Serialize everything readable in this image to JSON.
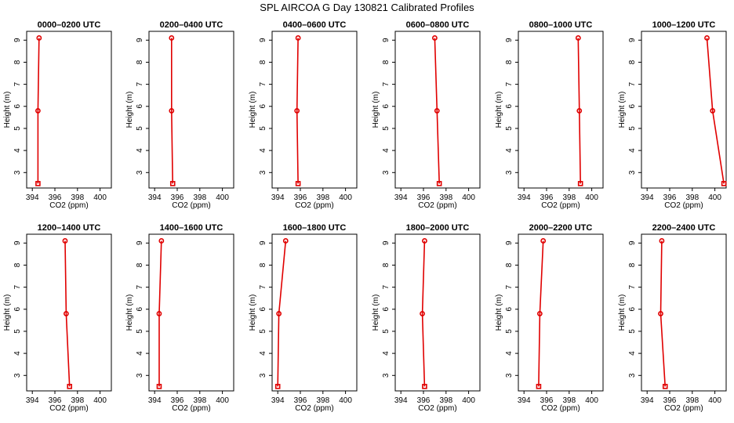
{
  "figure_title": "SPL AIRCOA G  Day 130821  Calibrated Profiles",
  "colors": {
    "series": "#e00000",
    "axes": "#000000",
    "background": "#ffffff"
  },
  "chart_data": [
    {
      "type": "line",
      "title": "0000–0200 UTC",
      "xlabel": "CO2 (ppm)",
      "ylabel": "Height (m)",
      "xlim": [
        393.5,
        401
      ],
      "ylim": [
        2.3,
        9.4
      ],
      "x_ticks": [
        394,
        396,
        398,
        400
      ],
      "y_ticks": [
        3,
        4,
        5,
        6,
        7,
        8,
        9
      ],
      "grid": false,
      "points": [
        {
          "x": 394.6,
          "y": 9.1
        },
        {
          "x": 394.5,
          "y": 5.8
        },
        {
          "x": 394.5,
          "y": 2.5
        }
      ]
    },
    {
      "type": "line",
      "title": "0200–0400 UTC",
      "xlabel": "CO2 (ppm)",
      "ylabel": "Height (m)",
      "xlim": [
        393.5,
        401
      ],
      "ylim": [
        2.3,
        9.4
      ],
      "x_ticks": [
        394,
        396,
        398,
        400
      ],
      "y_ticks": [
        3,
        4,
        5,
        6,
        7,
        8,
        9
      ],
      "grid": false,
      "points": [
        {
          "x": 395.5,
          "y": 9.1
        },
        {
          "x": 395.5,
          "y": 5.8
        },
        {
          "x": 395.6,
          "y": 2.5
        }
      ]
    },
    {
      "type": "line",
      "title": "0400–0600 UTC",
      "xlabel": "CO2 (ppm)",
      "ylabel": "Height (m)",
      "xlim": [
        393.5,
        401
      ],
      "ylim": [
        2.3,
        9.4
      ],
      "x_ticks": [
        394,
        396,
        398,
        400
      ],
      "y_ticks": [
        3,
        4,
        5,
        6,
        7,
        8,
        9
      ],
      "grid": false,
      "points": [
        {
          "x": 395.8,
          "y": 9.1
        },
        {
          "x": 395.7,
          "y": 5.8
        },
        {
          "x": 395.8,
          "y": 2.5
        }
      ]
    },
    {
      "type": "line",
      "title": "0600–0800 UTC",
      "xlabel": "CO2 (ppm)",
      "ylabel": "Height (m)",
      "xlim": [
        393.5,
        401
      ],
      "ylim": [
        2.3,
        9.4
      ],
      "x_ticks": [
        394,
        396,
        398,
        400
      ],
      "y_ticks": [
        3,
        4,
        5,
        6,
        7,
        8,
        9
      ],
      "grid": false,
      "points": [
        {
          "x": 397.0,
          "y": 9.1
        },
        {
          "x": 397.2,
          "y": 5.8
        },
        {
          "x": 397.4,
          "y": 2.5
        }
      ]
    },
    {
      "type": "line",
      "title": "0800–1000 UTC",
      "xlabel": "CO2 (ppm)",
      "ylabel": "Height (m)",
      "xlim": [
        393.5,
        401
      ],
      "ylim": [
        2.3,
        9.4
      ],
      "x_ticks": [
        394,
        396,
        398,
        400
      ],
      "y_ticks": [
        3,
        4,
        5,
        6,
        7,
        8,
        9
      ],
      "grid": false,
      "points": [
        {
          "x": 398.8,
          "y": 9.1
        },
        {
          "x": 398.9,
          "y": 5.8
        },
        {
          "x": 399.0,
          "y": 2.5
        }
      ]
    },
    {
      "type": "line",
      "title": "1000–1200 UTC",
      "xlabel": "CO2 (ppm)",
      "ylabel": "Height (m)",
      "xlim": [
        393.5,
        401
      ],
      "ylim": [
        2.3,
        9.4
      ],
      "x_ticks": [
        394,
        396,
        398,
        400
      ],
      "y_ticks": [
        3,
        4,
        5,
        6,
        7,
        8,
        9
      ],
      "grid": false,
      "points": [
        {
          "x": 399.3,
          "y": 9.1
        },
        {
          "x": 399.8,
          "y": 5.8
        },
        {
          "x": 400.8,
          "y": 2.5
        }
      ]
    },
    {
      "type": "line",
      "title": "1200–1400 UTC",
      "xlabel": "CO2 (ppm)",
      "ylabel": "Height (m)",
      "xlim": [
        393.5,
        401
      ],
      "ylim": [
        2.3,
        9.4
      ],
      "x_ticks": [
        394,
        396,
        398,
        400
      ],
      "y_ticks": [
        3,
        4,
        5,
        6,
        7,
        8,
        9
      ],
      "grid": false,
      "points": [
        {
          "x": 396.9,
          "y": 9.1
        },
        {
          "x": 397.0,
          "y": 5.8
        },
        {
          "x": 397.3,
          "y": 2.5
        }
      ]
    },
    {
      "type": "line",
      "title": "1400–1600 UTC",
      "xlabel": "CO2 (ppm)",
      "ylabel": "Height (m)",
      "xlim": [
        393.5,
        401
      ],
      "ylim": [
        2.3,
        9.4
      ],
      "x_ticks": [
        394,
        396,
        398,
        400
      ],
      "y_ticks": [
        3,
        4,
        5,
        6,
        7,
        8,
        9
      ],
      "grid": false,
      "points": [
        {
          "x": 394.6,
          "y": 9.1
        },
        {
          "x": 394.4,
          "y": 5.8
        },
        {
          "x": 394.4,
          "y": 2.5
        }
      ]
    },
    {
      "type": "line",
      "title": "1600–1800 UTC",
      "xlabel": "CO2 (ppm)",
      "ylabel": "Height (m)",
      "xlim": [
        393.5,
        401
      ],
      "ylim": [
        2.3,
        9.4
      ],
      "x_ticks": [
        394,
        396,
        398,
        400
      ],
      "y_ticks": [
        3,
        4,
        5,
        6,
        7,
        8,
        9
      ],
      "grid": false,
      "points": [
        {
          "x": 394.7,
          "y": 9.1
        },
        {
          "x": 394.1,
          "y": 5.8
        },
        {
          "x": 394.0,
          "y": 2.5
        }
      ]
    },
    {
      "type": "line",
      "title": "1800–2000 UTC",
      "xlabel": "CO2 (ppm)",
      "ylabel": "Height (m)",
      "xlim": [
        393.5,
        401
      ],
      "ylim": [
        2.3,
        9.4
      ],
      "x_ticks": [
        394,
        396,
        398,
        400
      ],
      "y_ticks": [
        3,
        4,
        5,
        6,
        7,
        8,
        9
      ],
      "grid": false,
      "points": [
        {
          "x": 396.1,
          "y": 9.1
        },
        {
          "x": 395.9,
          "y": 5.8
        },
        {
          "x": 396.1,
          "y": 2.5
        }
      ]
    },
    {
      "type": "line",
      "title": "2000–2200 UTC",
      "xlabel": "CO2 (ppm)",
      "ylabel": "Height (m)",
      "xlim": [
        393.5,
        401
      ],
      "ylim": [
        2.3,
        9.4
      ],
      "x_ticks": [
        394,
        396,
        398,
        400
      ],
      "y_ticks": [
        3,
        4,
        5,
        6,
        7,
        8,
        9
      ],
      "grid": false,
      "points": [
        {
          "x": 395.7,
          "y": 9.1
        },
        {
          "x": 395.4,
          "y": 5.8
        },
        {
          "x": 395.3,
          "y": 2.5
        }
      ]
    },
    {
      "type": "line",
      "title": "2200–2400 UTC",
      "xlabel": "CO2 (ppm)",
      "ylabel": "Height (m)",
      "xlim": [
        393.5,
        401
      ],
      "ylim": [
        2.3,
        9.4
      ],
      "x_ticks": [
        394,
        396,
        398,
        400
      ],
      "y_ticks": [
        3,
        4,
        5,
        6,
        7,
        8,
        9
      ],
      "grid": false,
      "points": [
        {
          "x": 395.3,
          "y": 9.1
        },
        {
          "x": 395.2,
          "y": 5.8
        },
        {
          "x": 395.6,
          "y": 2.5
        }
      ]
    }
  ]
}
